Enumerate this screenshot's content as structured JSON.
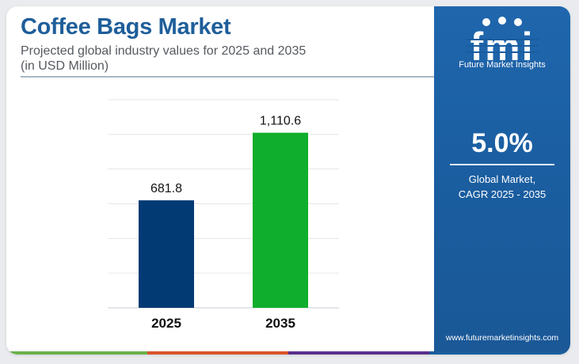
{
  "header": {
    "title": "Coffee Bags Market",
    "subtitle_line1": "Projected global industry values for 2025 and 2035",
    "subtitle_line2": "(in USD Million)"
  },
  "chart_data": {
    "type": "bar",
    "categories": [
      "2025",
      "2035"
    ],
    "values": [
      681.8,
      1110.6
    ],
    "value_labels": [
      "681.8",
      "1,110.6"
    ],
    "bar_colors": [
      "#023a73",
      "#0fae2c"
    ],
    "ylim": [
      0,
      1320
    ],
    "grid": true,
    "legend": "none"
  },
  "sidebar": {
    "brand_name": "Future Market Insights",
    "cagr_value": "5.0%",
    "cagr_label_line1": "Global Market,",
    "cagr_label_line2": "CAGR 2025 - 2035",
    "website": "www.futuremarketinsights.com"
  },
  "colors": {
    "title": "#1e5e9a",
    "panel": "#1a5d9f",
    "footer": [
      "#6ab14a",
      "#d9542a",
      "#5a2f8c",
      "#1a5d9f"
    ]
  }
}
